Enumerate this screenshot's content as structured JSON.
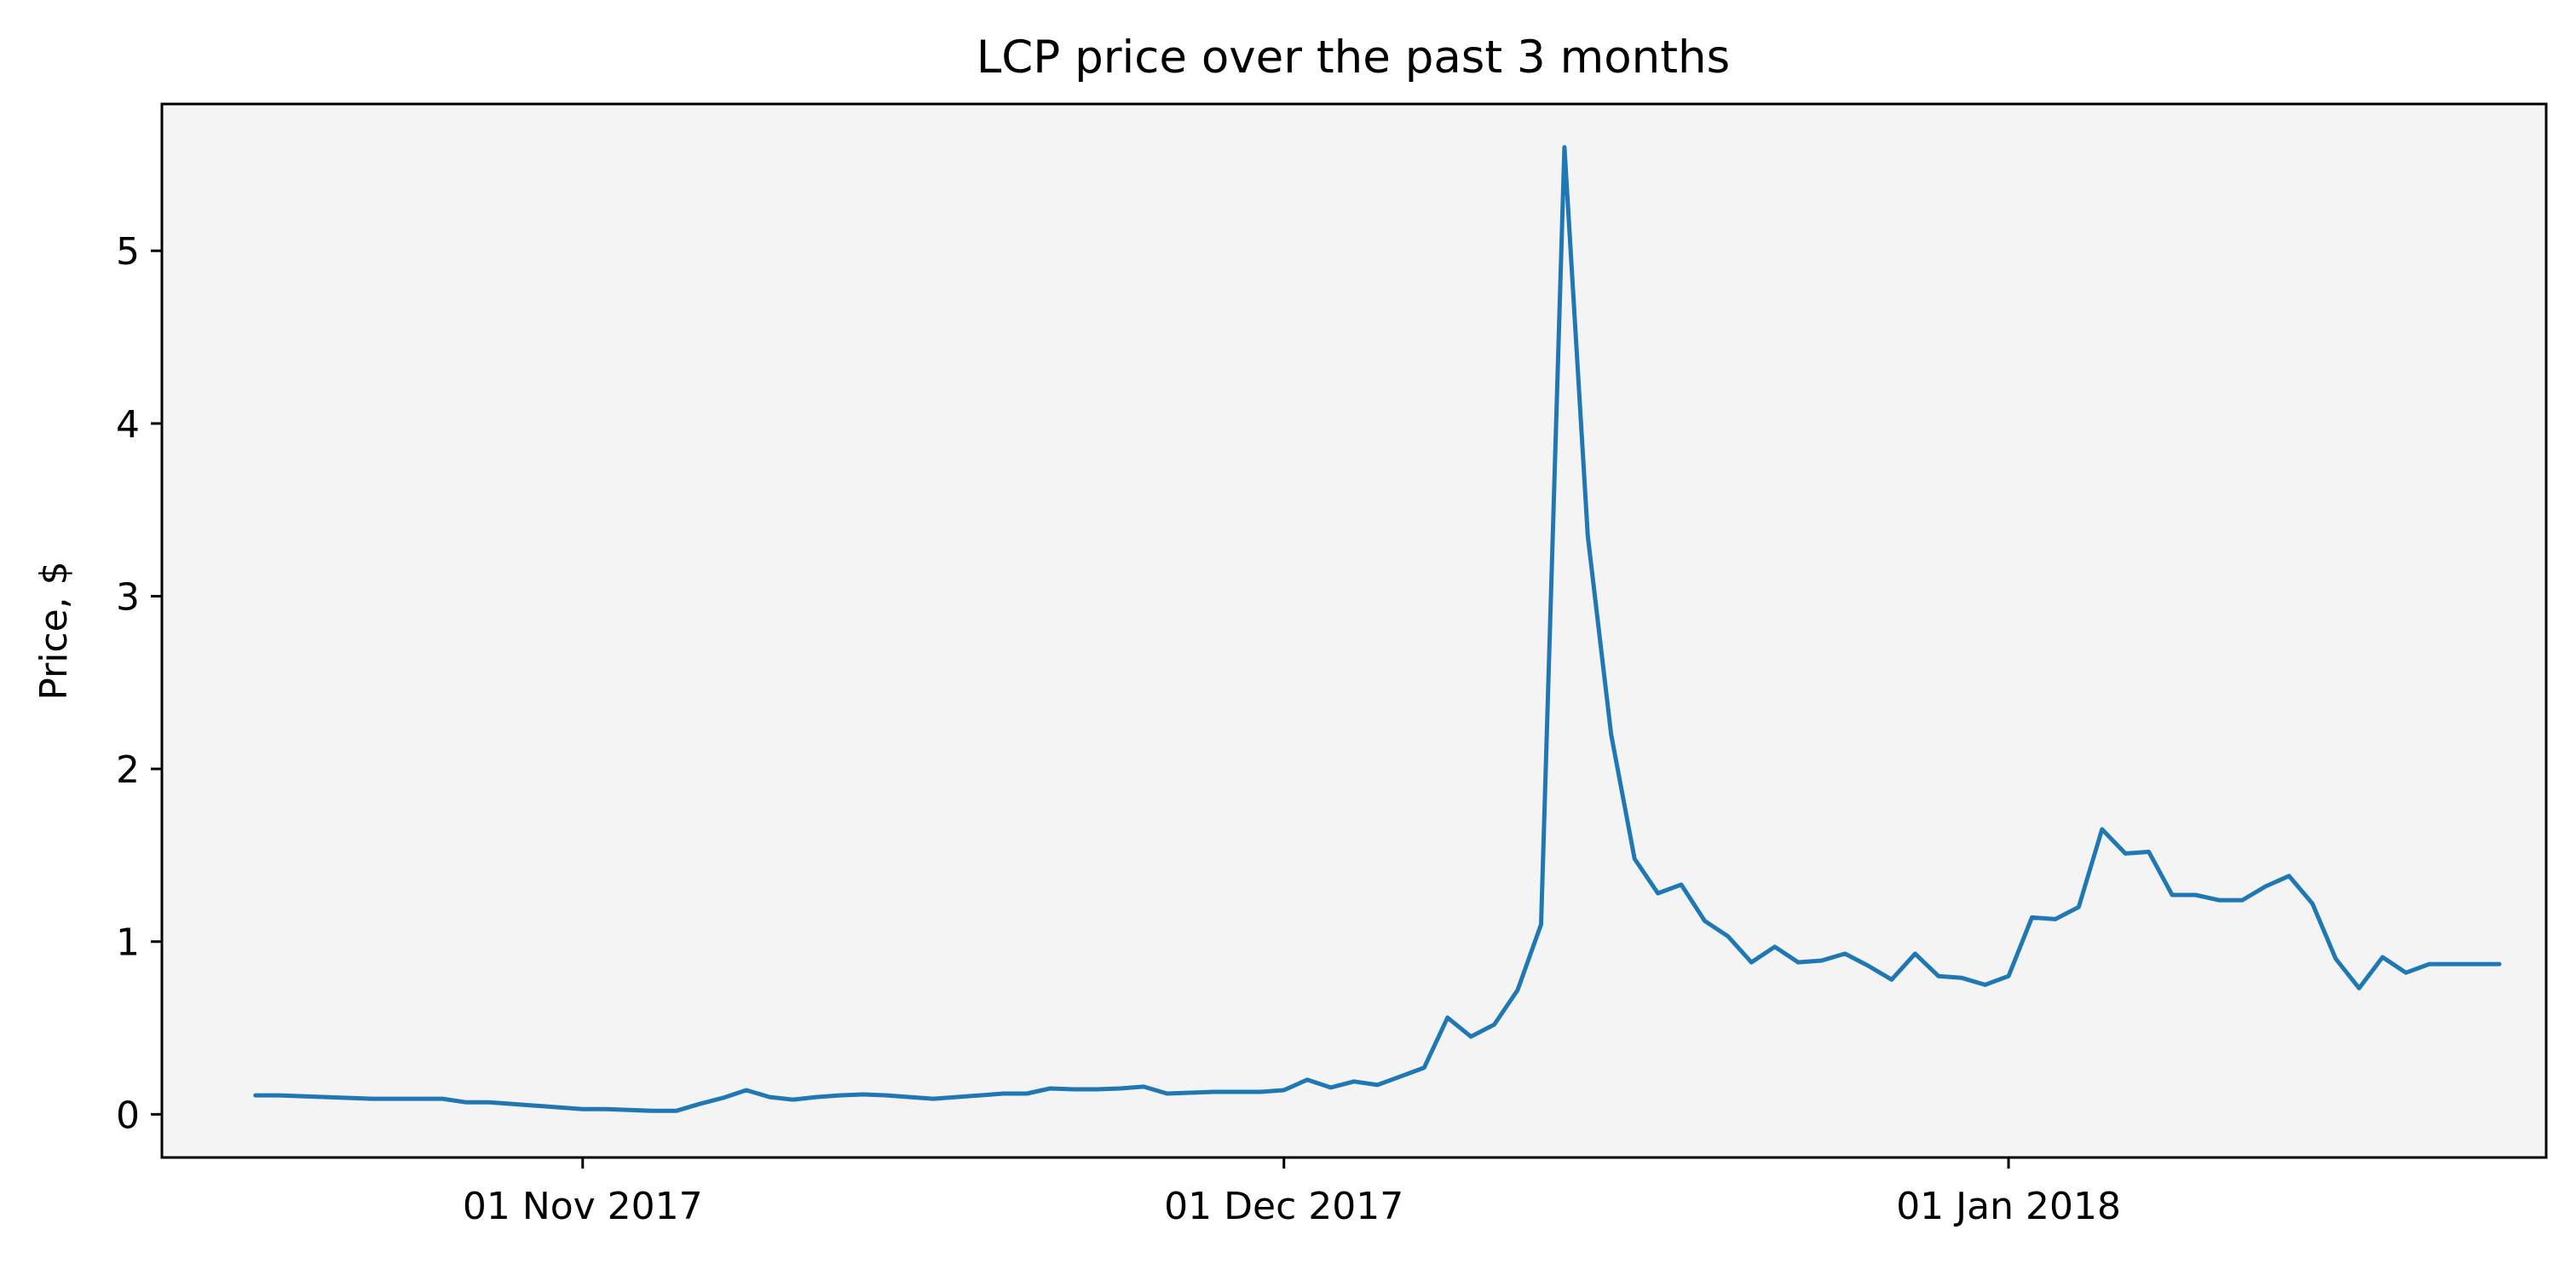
{
  "chart_data": {
    "type": "line",
    "title": "LCP price over the past 3 months",
    "xlabel": "",
    "ylabel": "Price, $",
    "grid": false,
    "background_color": "#f4f4f4",
    "line_color": "#1f77b4",
    "xlim": [
      "2017-10-14",
      "2018-01-24"
    ],
    "ylim": [
      -0.25,
      5.85
    ],
    "x_ticks": [
      {
        "date": "2017-11-01",
        "label": "01 Nov 2017"
      },
      {
        "date": "2017-12-01",
        "label": "01 Dec 2017"
      },
      {
        "date": "2018-01-01",
        "label": "01 Jan 2018"
      }
    ],
    "y_ticks": [
      {
        "value": 0,
        "label": "0"
      },
      {
        "value": 1,
        "label": "1"
      },
      {
        "value": 2,
        "label": "2"
      },
      {
        "value": 3,
        "label": "3"
      },
      {
        "value": 4,
        "label": "4"
      },
      {
        "value": 5,
        "label": "5"
      }
    ],
    "series": [
      {
        "name": "",
        "x": [
          "2017-10-18",
          "2017-10-19",
          "2017-10-20",
          "2017-10-21",
          "2017-10-22",
          "2017-10-23",
          "2017-10-24",
          "2017-10-25",
          "2017-10-26",
          "2017-10-27",
          "2017-10-28",
          "2017-10-29",
          "2017-10-30",
          "2017-10-31",
          "2017-11-01",
          "2017-11-02",
          "2017-11-03",
          "2017-11-04",
          "2017-11-05",
          "2017-11-06",
          "2017-11-07",
          "2017-11-08",
          "2017-11-09",
          "2017-11-10",
          "2017-11-11",
          "2017-11-12",
          "2017-11-13",
          "2017-11-14",
          "2017-11-15",
          "2017-11-16",
          "2017-11-17",
          "2017-11-18",
          "2017-11-19",
          "2017-11-20",
          "2017-11-21",
          "2017-11-22",
          "2017-11-23",
          "2017-11-24",
          "2017-11-25",
          "2017-11-26",
          "2017-11-27",
          "2017-11-28",
          "2017-11-29",
          "2017-11-30",
          "2017-12-01",
          "2017-12-02",
          "2017-12-03",
          "2017-12-04",
          "2017-12-05",
          "2017-12-06",
          "2017-12-07",
          "2017-12-08",
          "2017-12-09",
          "2017-12-10",
          "2017-12-11",
          "2017-12-12",
          "2017-12-13",
          "2017-12-14",
          "2017-12-15",
          "2017-12-16",
          "2017-12-17",
          "2017-12-18",
          "2017-12-19",
          "2017-12-20",
          "2017-12-21",
          "2017-12-22",
          "2017-12-23",
          "2017-12-24",
          "2017-12-25",
          "2017-12-26",
          "2017-12-27",
          "2017-12-28",
          "2017-12-29",
          "2017-12-30",
          "2017-12-31",
          "2018-01-01",
          "2018-01-02",
          "2018-01-03",
          "2018-01-04",
          "2018-01-05",
          "2018-01-06",
          "2018-01-07",
          "2018-01-08",
          "2018-01-09",
          "2018-01-10",
          "2018-01-11",
          "2018-01-12",
          "2018-01-13",
          "2018-01-14",
          "2018-01-15",
          "2018-01-16",
          "2018-01-17",
          "2018-01-18",
          "2018-01-19",
          "2018-01-20",
          "2018-01-21",
          "2018-01-22"
        ],
        "y": [
          0.11,
          0.11,
          0.105,
          0.1,
          0.095,
          0.09,
          0.09,
          0.09,
          0.09,
          0.07,
          0.07,
          0.06,
          0.05,
          0.04,
          0.03,
          0.03,
          0.025,
          0.02,
          0.02,
          0.06,
          0.095,
          0.14,
          0.1,
          0.085,
          0.1,
          0.11,
          0.115,
          0.11,
          0.1,
          0.09,
          0.1,
          0.11,
          0.12,
          0.12,
          0.15,
          0.145,
          0.145,
          0.15,
          0.16,
          0.12,
          0.125,
          0.13,
          0.13,
          0.13,
          0.14,
          0.2,
          0.155,
          0.19,
          0.17,
          0.22,
          0.27,
          0.56,
          0.45,
          0.52,
          0.72,
          1.1,
          5.6,
          3.35,
          2.2,
          1.48,
          1.28,
          1.33,
          1.12,
          1.03,
          0.88,
          0.97,
          0.88,
          0.89,
          0.93,
          0.86,
          0.78,
          0.93,
          0.8,
          0.79,
          0.75,
          0.8,
          1.14,
          1.13,
          1.2,
          1.65,
          1.51,
          1.52,
          1.27,
          1.27,
          1.24,
          1.24,
          1.32,
          1.38,
          1.22,
          0.9,
          0.73,
          0.91,
          0.82,
          0.87,
          0.87,
          0.87,
          0.87
        ]
      }
    ]
  }
}
